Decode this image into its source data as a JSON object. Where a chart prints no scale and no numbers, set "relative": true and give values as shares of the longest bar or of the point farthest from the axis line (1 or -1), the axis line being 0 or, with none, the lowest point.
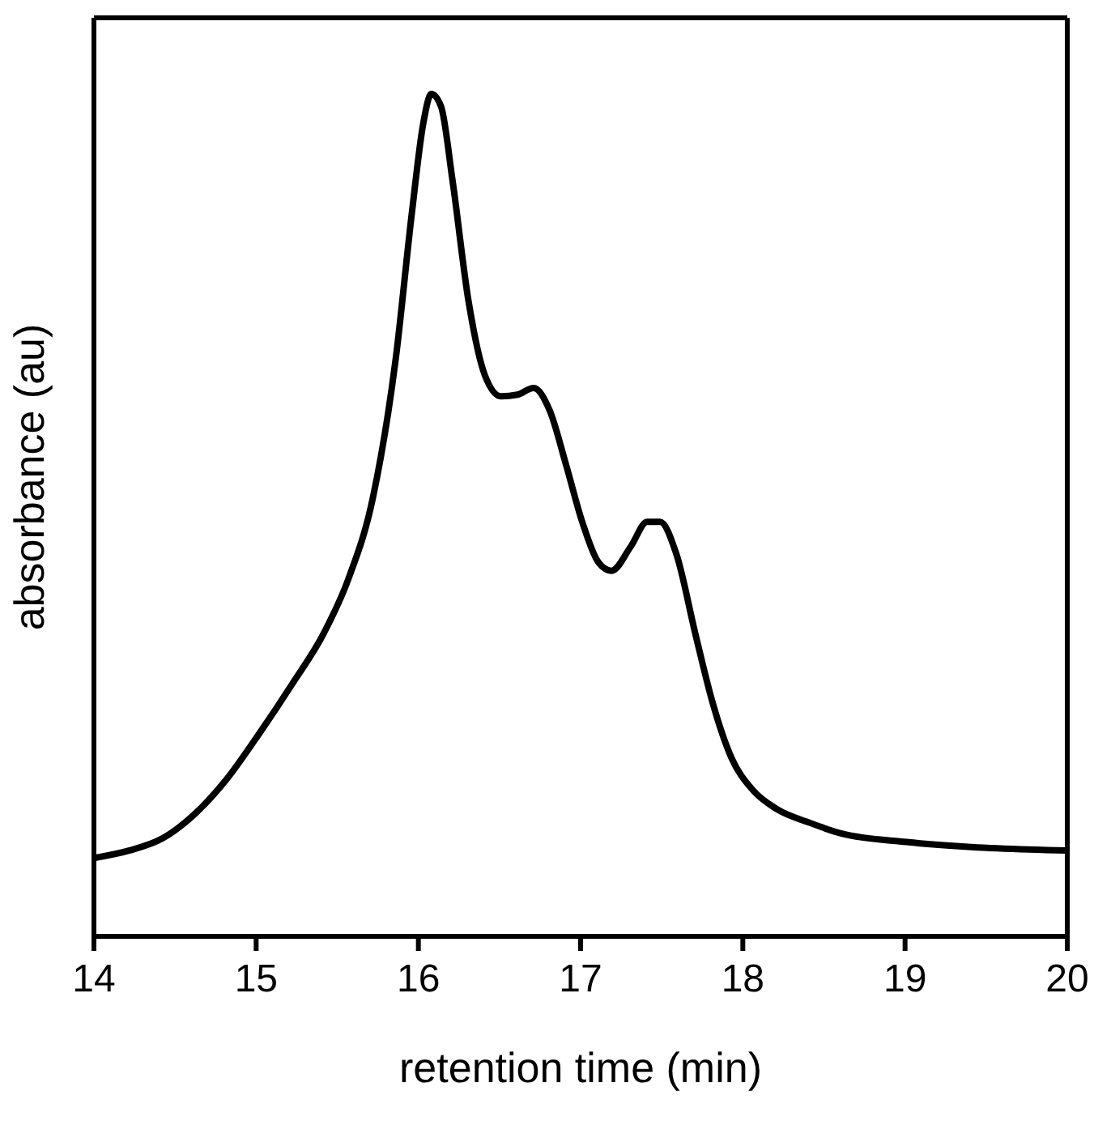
{
  "chart_data": {
    "type": "line",
    "xlabel": "retention time (min)",
    "ylabel": "absorbance (au)",
    "relative": true,
    "xlim": [
      14,
      20
    ],
    "xticks": [
      14,
      15,
      16,
      17,
      18,
      19,
      20
    ],
    "grid": false,
    "legend": false,
    "marker": "none",
    "line_style": "solid",
    "series": [
      {
        "color": "#000000",
        "x": [
          14.0,
          14.22,
          14.42,
          14.62,
          14.82,
          15.02,
          15.22,
          15.42,
          15.57,
          15.72,
          15.86,
          15.96,
          16.03,
          16.08,
          16.14,
          16.21,
          16.31,
          16.41,
          16.51,
          16.61,
          16.71,
          16.81,
          16.91,
          17.01,
          17.11,
          17.19,
          17.31,
          17.41,
          17.49,
          17.59,
          17.71,
          17.81,
          17.93,
          18.06,
          18.21,
          18.41,
          18.61,
          19.01,
          19.41,
          20.0
        ],
        "values": [
          0.093,
          0.102,
          0.116,
          0.145,
          0.187,
          0.241,
          0.299,
          0.361,
          0.425,
          0.521,
          0.685,
          0.859,
          0.965,
          1,
          0.985,
          0.898,
          0.753,
          0.666,
          0.641,
          0.643,
          0.651,
          0.624,
          0.56,
          0.492,
          0.444,
          0.434,
          0.463,
          0.492,
          0.492,
          0.454,
          0.357,
          0.28,
          0.212,
          0.174,
          0.151,
          0.135,
          0.122,
          0.112,
          0.106,
          0.102
        ]
      }
    ]
  }
}
